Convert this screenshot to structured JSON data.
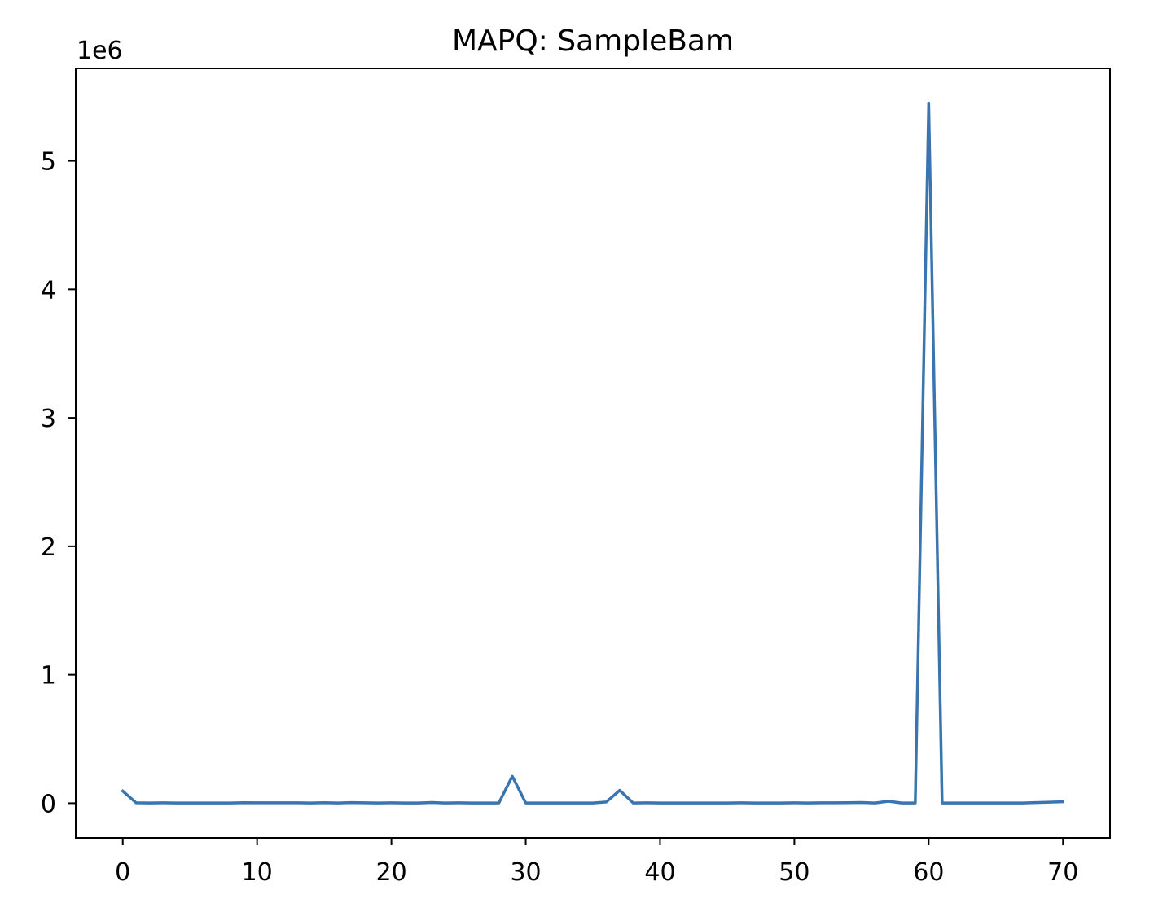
{
  "chart_data": {
    "type": "line",
    "title": "MAPQ: SampleBam",
    "xlabel": "",
    "ylabel": "",
    "y_offset_label": "1e6",
    "xlim": [
      -3.5,
      73.5
    ],
    "ylim": [
      -0.27,
      5.72
    ],
    "x_ticks": [
      0,
      10,
      20,
      30,
      40,
      50,
      60,
      70
    ],
    "x_tick_labels": [
      "0",
      "10",
      "20",
      "30",
      "40",
      "50",
      "60",
      "70"
    ],
    "y_ticks": [
      0,
      1,
      2,
      3,
      4,
      5
    ],
    "y_tick_labels": [
      "0",
      "1",
      "2",
      "3",
      "4",
      "5"
    ],
    "grid": false,
    "legend": "none",
    "series": [
      {
        "color": "#3a75af",
        "x": [
          0,
          1,
          2,
          3,
          4,
          5,
          6,
          7,
          8,
          9,
          10,
          11,
          12,
          13,
          14,
          15,
          16,
          17,
          18,
          19,
          20,
          21,
          22,
          23,
          24,
          25,
          26,
          27,
          28,
          29,
          30,
          31,
          32,
          33,
          34,
          35,
          36,
          37,
          38,
          39,
          40,
          41,
          42,
          43,
          44,
          45,
          46,
          47,
          48,
          49,
          50,
          51,
          52,
          53,
          54,
          55,
          56,
          57,
          58,
          59,
          60,
          61,
          62,
          63,
          64,
          65,
          66,
          67,
          68,
          69,
          70
        ],
        "y": [
          0.095,
          0.003,
          0.002,
          0.003,
          0.002,
          0.002,
          0.002,
          0.002,
          0.002,
          0.004,
          0.003,
          0.003,
          0.003,
          0.003,
          0.002,
          0.004,
          0.002,
          0.005,
          0.003,
          0.002,
          0.003,
          0.002,
          0.002,
          0.006,
          0.002,
          0.003,
          0.002,
          0.002,
          0.002,
          0.21,
          0.002,
          0.002,
          0.002,
          0.002,
          0.002,
          0.002,
          0.01,
          0.1,
          0.002,
          0.003,
          0.002,
          0.002,
          0.002,
          0.002,
          0.002,
          0.002,
          0.003,
          0.002,
          0.002,
          0.002,
          0.003,
          0.002,
          0.003,
          0.003,
          0.004,
          0.006,
          0.002,
          0.015,
          0.002,
          0.002,
          5.45,
          0.002,
          0.002,
          0.002,
          0.002,
          0.002,
          0.002,
          0.002,
          0.005,
          0.008,
          0.012
        ]
      }
    ]
  }
}
